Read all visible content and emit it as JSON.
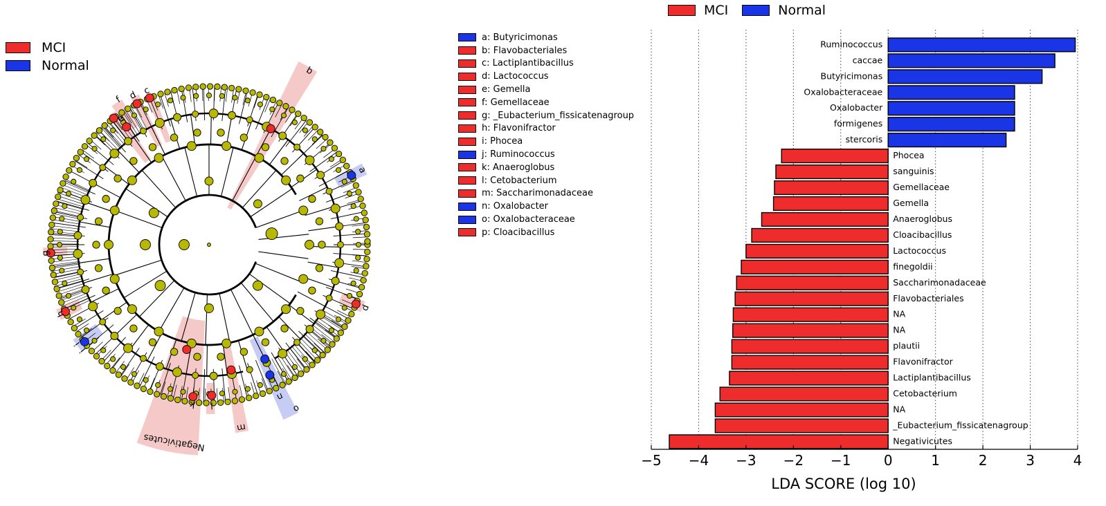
{
  "legend": {
    "mci_label": "MCI",
    "normal_label": "Normal",
    "mci_color": "#ee2c2c",
    "normal_color": "#1a35e6"
  },
  "cladogram": {
    "node_color": "#b8b800",
    "highlight_color_mci": "#f6c9c9",
    "highlight_color_normal": "#c7ccf4",
    "labeled_clades": [
      {
        "letter": "a",
        "group": "Normal"
      },
      {
        "letter": "b",
        "group": "MCI"
      },
      {
        "letter": "c",
        "group": "MCI"
      },
      {
        "letter": "d",
        "group": "MCI"
      },
      {
        "letter": "e",
        "group": "MCI"
      },
      {
        "letter": "f",
        "group": "MCI"
      },
      {
        "letter": "g",
        "group": "MCI"
      },
      {
        "letter": "h",
        "group": "MCI"
      },
      {
        "letter": "i",
        "group": "MCI"
      },
      {
        "letter": "j",
        "group": "Normal"
      },
      {
        "letter": "k",
        "group": "MCI"
      },
      {
        "letter": "l",
        "group": "MCI"
      },
      {
        "letter": "m",
        "group": "MCI"
      },
      {
        "letter": "n",
        "group": "Normal"
      },
      {
        "letter": "o",
        "group": "Normal"
      },
      {
        "letter": "p",
        "group": "MCI"
      }
    ],
    "named_clade": "Negativicutes",
    "key": [
      {
        "text": "a: Butyricimonas",
        "group": "Normal"
      },
      {
        "text": "b: Flavobacteriales",
        "group": "MCI"
      },
      {
        "text": "c: Lactiplantibacillus",
        "group": "MCI"
      },
      {
        "text": "d: Lactococcus",
        "group": "MCI"
      },
      {
        "text": "e: Gemella",
        "group": "MCI"
      },
      {
        "text": "f: Gemellaceae",
        "group": "MCI"
      },
      {
        "text": "g: _Eubacterium_fissicatenagroup",
        "group": "MCI"
      },
      {
        "text": "h: Flavonifractor",
        "group": "MCI"
      },
      {
        "text": "i: Phocea",
        "group": "MCI"
      },
      {
        "text": "j: Ruminococcus",
        "group": "Normal"
      },
      {
        "text": "k: Anaeroglobus",
        "group": "MCI"
      },
      {
        "text": "l: Cetobacterium",
        "group": "MCI"
      },
      {
        "text": "m: Saccharimonadaceae",
        "group": "MCI"
      },
      {
        "text": "n: Oxalobacter",
        "group": "Normal"
      },
      {
        "text": "o: Oxalobacteraceae",
        "group": "Normal"
      },
      {
        "text": "p: Cloacibacillus",
        "group": "MCI"
      }
    ]
  },
  "chart_data": {
    "type": "bar",
    "orientation": "horizontal",
    "xlabel": "LDA SCORE (log 10)",
    "xlim": [
      -5,
      4
    ],
    "xticks": [
      -5,
      -4,
      -3,
      -2,
      -1,
      0,
      1,
      2,
      3,
      4
    ],
    "xtick_labels": [
      "−5",
      "−4",
      "−3",
      "−2",
      "−1",
      "0",
      "1",
      "2",
      "3",
      "4"
    ],
    "grid": "vertical dotted",
    "legend_position": "top",
    "categories": [
      "Ruminococcus",
      "caccae",
      "Butyricimonas",
      "Oxalobacteraceae",
      "Oxalobacter",
      "formigenes",
      "stercoris",
      "Phocea",
      "sanguinis",
      "Gemellaceae",
      "Gemella",
      "Anaeroglobus",
      "Cloacibacillus",
      "Lactococcus",
      "finegoldii",
      "Saccharimonadaceae",
      "Flavobacteriales",
      "NA",
      "NA",
      "plautii",
      "Flavonifractor",
      "Lactiplantibacillus",
      "Cetobacterium",
      "NA",
      "_Eubacterium_fissicatenagroup",
      "Negativicutes"
    ],
    "values": [
      3.95,
      3.52,
      3.25,
      2.67,
      2.67,
      2.67,
      2.49,
      -2.25,
      -2.37,
      -2.4,
      -2.42,
      -2.67,
      -2.88,
      -3.0,
      -3.1,
      -3.2,
      -3.23,
      -3.27,
      -3.28,
      -3.3,
      -3.3,
      -3.35,
      -3.55,
      -3.65,
      -3.65,
      -4.62
    ],
    "groups": [
      "Normal",
      "Normal",
      "Normal",
      "Normal",
      "Normal",
      "Normal",
      "Normal",
      "MCI",
      "MCI",
      "MCI",
      "MCI",
      "MCI",
      "MCI",
      "MCI",
      "MCI",
      "MCI",
      "MCI",
      "MCI",
      "MCI",
      "MCI",
      "MCI",
      "MCI",
      "MCI",
      "MCI",
      "MCI",
      "MCI"
    ]
  }
}
